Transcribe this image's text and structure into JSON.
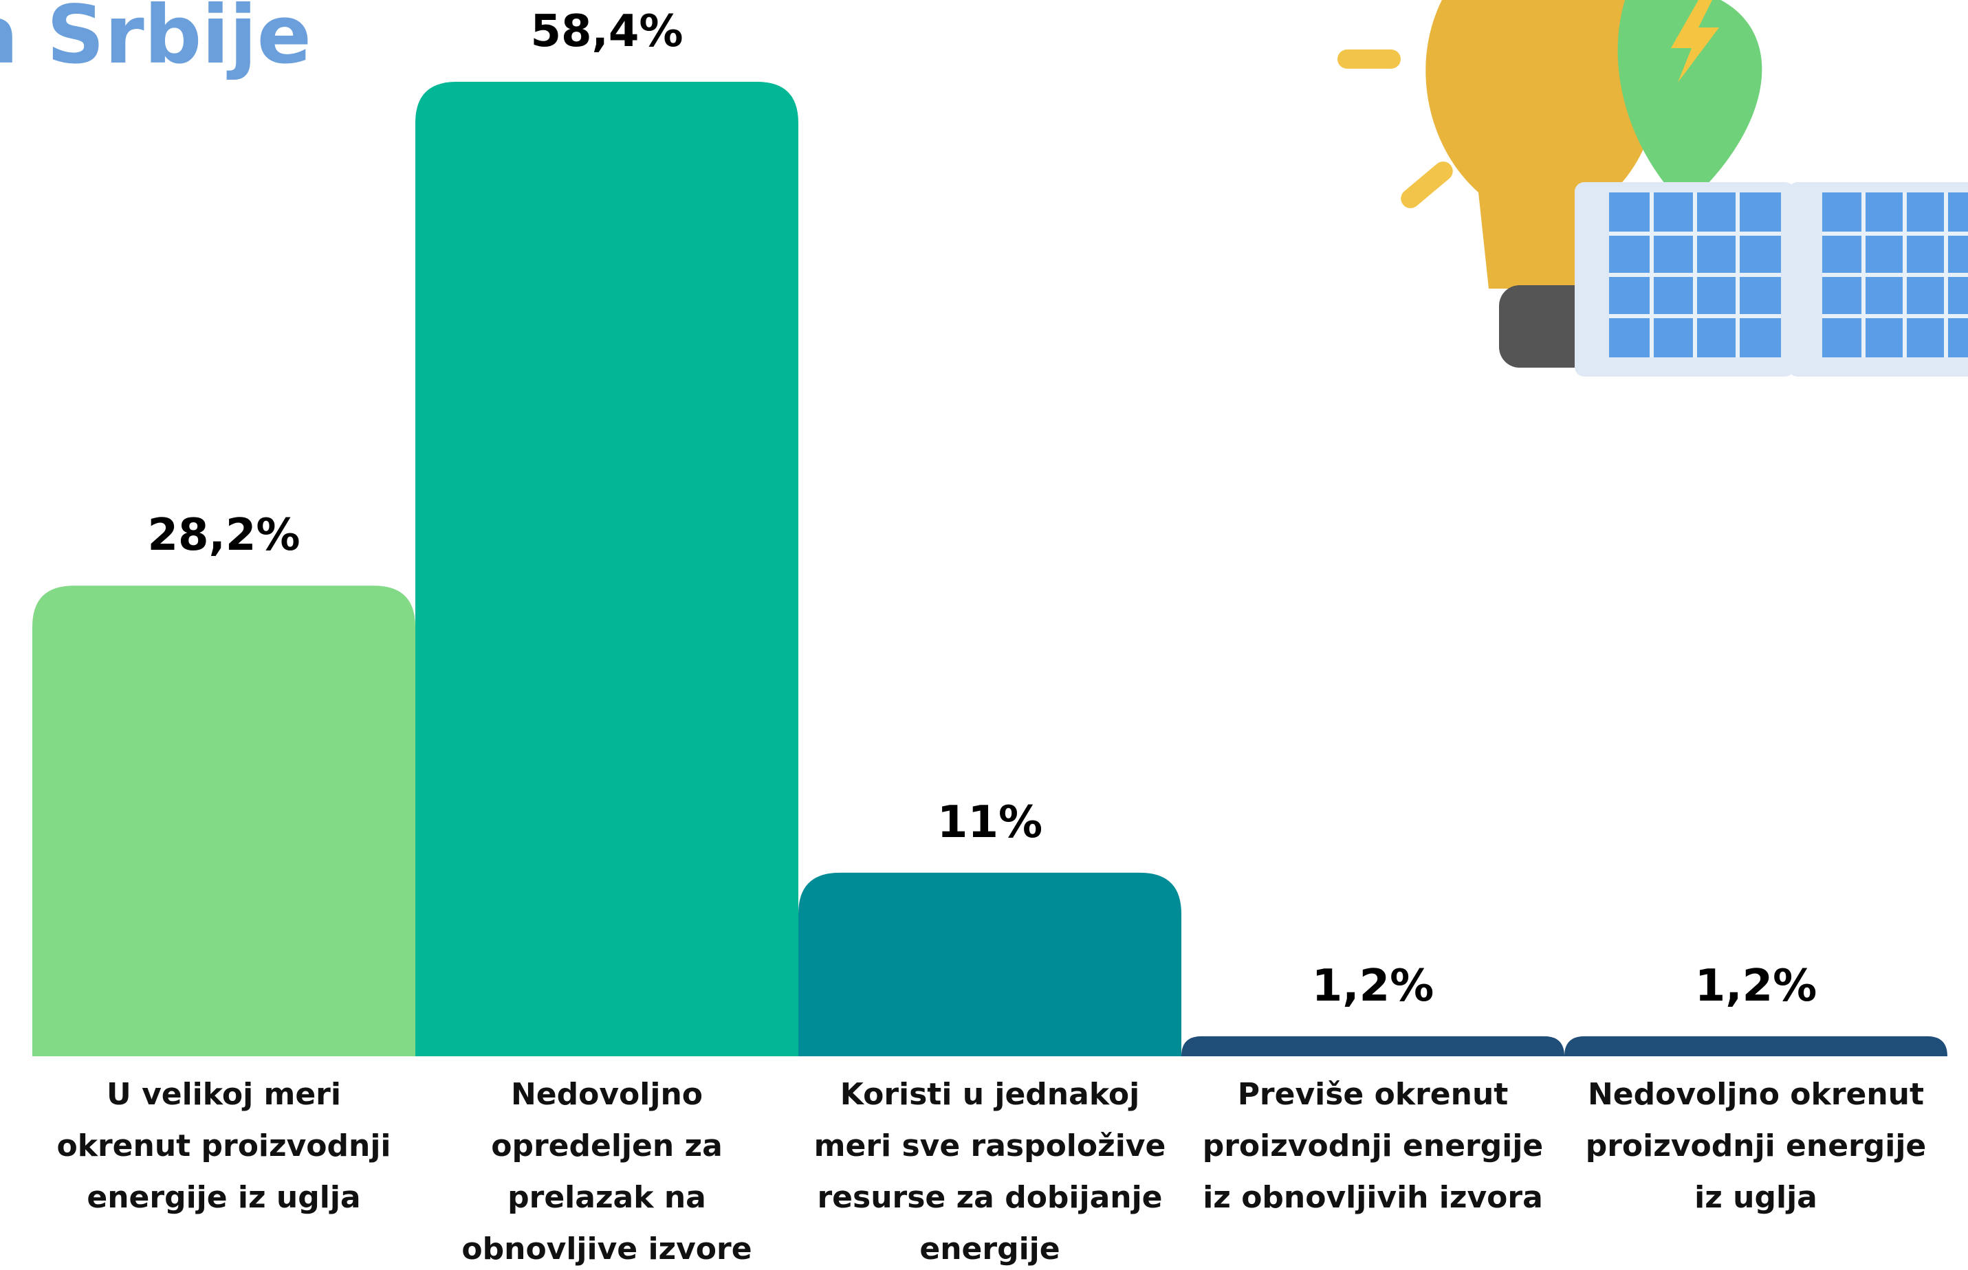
{
  "chart_data": {
    "type": "bar",
    "title": "na Srbije",
    "categories": [
      "U velikoj meri okrenut proizvodnji energije iz uglja",
      "Nedovoljno opredeljen za prelazak na obnovljive izvore energije",
      "Koristi u jednakoj meri sve raspoložive resurse za dobijanje energije",
      "Previše okrenut proizvodnji energije iz obnovljivih izvora",
      "Nedovoljno okrenut proizvodnji energije iz uglja"
    ],
    "values": [
      28.2,
      58.4,
      11,
      1.2,
      1.2
    ],
    "value_labels": [
      "28,2%",
      "58,4%",
      "11%",
      "1,2%",
      "1,2%"
    ],
    "colors": [
      "#82d986",
      "#02b795",
      "#008c96",
      "#1f4e79",
      "#1f4e79"
    ]
  }
}
